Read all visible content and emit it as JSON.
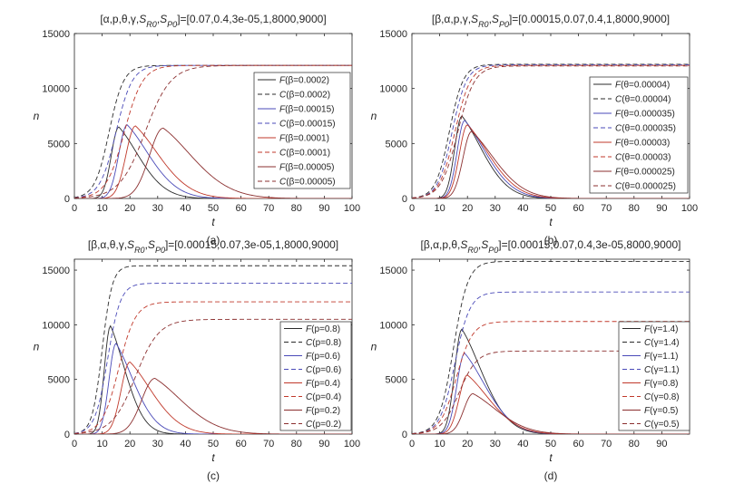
{
  "chart_data": [
    {
      "type": "line",
      "panel": "a",
      "title": "[α,p,θ,γ,S_R0,S_P0]=[0.07,0.4,3e-05,1,8000,9000]",
      "caption": "(a)",
      "xlabel": "t",
      "ylabel": "n",
      "xlim": [
        0,
        100
      ],
      "ylim": [
        0,
        15000
      ],
      "xticks": [
        0,
        10,
        20,
        30,
        40,
        50,
        60,
        70,
        80,
        90,
        100
      ],
      "yticks": [
        0,
        5000,
        10000,
        15000
      ],
      "legend_position": "right",
      "series": [
        {
          "name": "F(β=0.0002)",
          "color": "#2b2b2b",
          "dash": "solid",
          "peak": 6500,
          "peak_t": 16,
          "rise": 2.7,
          "tail": 11
        },
        {
          "name": "C(β=0.0002)",
          "color": "#2b2b2b",
          "dash": "dashed",
          "plateau": 12100,
          "mid_t": 12.5,
          "width": 2.6
        },
        {
          "name": "F(β=0.00015)",
          "color": "#4a4ab8",
          "dash": "solid",
          "peak": 6700,
          "peak_t": 19,
          "rise": 3.0,
          "tail": 12
        },
        {
          "name": "C(β=0.00015)",
          "color": "#4a4ab8",
          "dash": "dashed",
          "plateau": 12100,
          "mid_t": 15,
          "width": 2.9
        },
        {
          "name": "F(β=0.0001)",
          "color": "#c0392b",
          "dash": "solid",
          "peak": 6600,
          "peak_t": 22,
          "rise": 3.4,
          "tail": 13
        },
        {
          "name": "C(β=0.0001)",
          "color": "#c0392b",
          "dash": "dashed",
          "plateau": 12100,
          "mid_t": 18,
          "width": 3.3
        },
        {
          "name": "F(β=0.00005)",
          "color": "#8b2f2f",
          "dash": "solid",
          "peak": 6400,
          "peak_t": 32,
          "rise": 5.0,
          "tail": 16
        },
        {
          "name": "C(β=0.00005)",
          "color": "#8b2f2f",
          "dash": "dashed",
          "plateau": 12100,
          "mid_t": 25.5,
          "width": 4.6
        }
      ]
    },
    {
      "type": "line",
      "panel": "b",
      "title": "[β,α,p,γ,S_R0,S_P0]=[0.00015,0.07,0.4,1,8000,9000]",
      "caption": "(b)",
      "xlabel": "t",
      "ylabel": "n",
      "xlim": [
        0,
        100
      ],
      "ylim": [
        0,
        15000
      ],
      "xticks": [
        0,
        10,
        20,
        30,
        40,
        50,
        60,
        70,
        80,
        90,
        100
      ],
      "yticks": [
        0,
        5000,
        10000,
        15000
      ],
      "legend_position": "right",
      "series": [
        {
          "name": "F(θ=0.00004)",
          "color": "#2b2b2b",
          "dash": "solid",
          "peak": 7500,
          "peak_t": 18,
          "rise": 2.6,
          "tail": 11
        },
        {
          "name": "C(θ=0.00004)",
          "color": "#2b2b2b",
          "dash": "dashed",
          "plateau": 12200,
          "mid_t": 13.5,
          "width": 2.5
        },
        {
          "name": "F(θ=0.000035)",
          "color": "#4a4ab8",
          "dash": "solid",
          "peak": 7100,
          "peak_t": 19,
          "rise": 2.7,
          "tail": 11.5
        },
        {
          "name": "C(θ=0.000035)",
          "color": "#4a4ab8",
          "dash": "dashed",
          "plateau": 12150,
          "mid_t": 14.5,
          "width": 2.6
        },
        {
          "name": "F(θ=0.00003)",
          "color": "#c0392b",
          "dash": "solid",
          "peak": 6700,
          "peak_t": 20,
          "rise": 2.9,
          "tail": 12
        },
        {
          "name": "C(θ=0.00003)",
          "color": "#c0392b",
          "dash": "dashed",
          "plateau": 12100,
          "mid_t": 15.5,
          "width": 2.8
        },
        {
          "name": "F(θ=0.000025)",
          "color": "#8b2f2f",
          "dash": "solid",
          "peak": 6100,
          "peak_t": 21.5,
          "rise": 3.1,
          "tail": 12.5
        },
        {
          "name": "C(θ=0.000025)",
          "color": "#8b2f2f",
          "dash": "dashed",
          "plateau": 12050,
          "mid_t": 16.5,
          "width": 3.0
        }
      ]
    },
    {
      "type": "line",
      "panel": "c",
      "title": "[β,α,θ,γ,S_R0,S_P0]=[0.00015,0.07,3e-05,1,8000,9000]",
      "caption": "(c)",
      "xlabel": "t",
      "ylabel": "n",
      "xlim": [
        0,
        100
      ],
      "ylim": [
        0,
        16000
      ],
      "xticks": [
        0,
        10,
        20,
        30,
        40,
        50,
        60,
        70,
        80,
        90,
        100
      ],
      "yticks": [
        0,
        5000,
        10000,
        15000
      ],
      "legend_position": "right",
      "series": [
        {
          "name": "F(p=0.8)",
          "color": "#2b2b2b",
          "dash": "solid",
          "peak": 9900,
          "peak_t": 13,
          "rise": 2.2,
          "tail": 8
        },
        {
          "name": "C(p=0.8)",
          "color": "#2b2b2b",
          "dash": "dashed",
          "plateau": 15400,
          "mid_t": 10,
          "width": 1.8
        },
        {
          "name": "F(p=0.6)",
          "color": "#4a4ab8",
          "dash": "solid",
          "peak": 8300,
          "peak_t": 15,
          "rise": 2.5,
          "tail": 9.5
        },
        {
          "name": "C(p=0.6)",
          "color": "#4a4ab8",
          "dash": "dashed",
          "plateau": 13800,
          "mid_t": 12,
          "width": 2.3
        },
        {
          "name": "F(p=0.4)",
          "color": "#c0392b",
          "dash": "solid",
          "peak": 6600,
          "peak_t": 20,
          "rise": 3.2,
          "tail": 12
        },
        {
          "name": "C(p=0.4)",
          "color": "#c0392b",
          "dash": "dashed",
          "plateau": 12100,
          "mid_t": 16,
          "width": 3.0
        },
        {
          "name": "F(p=0.2)",
          "color": "#8b2f2f",
          "dash": "solid",
          "peak": 5100,
          "peak_t": 29,
          "rise": 4.8,
          "tail": 15
        },
        {
          "name": "C(p=0.2)",
          "color": "#8b2f2f",
          "dash": "dashed",
          "plateau": 10500,
          "mid_t": 22,
          "width": 4.2
        }
      ]
    },
    {
      "type": "line",
      "panel": "d",
      "title": "[β,α,p,θ,S_R0,S_P0]=[0.00015,0.07,0.4,3e-05,8000,9000]",
      "caption": "(d)",
      "xlabel": "t",
      "ylabel": "n",
      "xlim": [
        0,
        100
      ],
      "ylim": [
        0,
        16000
      ],
      "xticks": [
        0,
        10,
        20,
        30,
        40,
        50,
        60,
        70,
        80,
        90
      ],
      "yticks": [
        0,
        5000,
        10000,
        15000
      ],
      "legend_position": "right",
      "series": [
        {
          "name": "F(γ=1.4)",
          "color": "#2b2b2b",
          "dash": "solid",
          "peak": 9600,
          "peak_t": 18,
          "rise": 2.6,
          "tail": 11
        },
        {
          "name": "C(γ=1.4)",
          "color": "#2b2b2b",
          "dash": "dashed",
          "plateau": 15800,
          "mid_t": 15,
          "width": 2.6
        },
        {
          "name": "F(γ=1.1)",
          "color": "#4a4ab8",
          "dash": "solid",
          "peak": 7400,
          "peak_t": 19,
          "rise": 2.8,
          "tail": 11.5
        },
        {
          "name": "C(γ=1.1)",
          "color": "#4a4ab8",
          "dash": "dashed",
          "plateau": 13000,
          "mid_t": 15.5,
          "width": 2.7
        },
        {
          "name": "F(γ=0.8)",
          "color": "#c0392b",
          "dash": "solid",
          "peak": 5400,
          "peak_t": 20,
          "rise": 3.0,
          "tail": 12
        },
        {
          "name": "C(γ=0.8)",
          "color": "#c0392b",
          "dash": "dashed",
          "plateau": 10300,
          "mid_t": 16,
          "width": 2.9
        },
        {
          "name": "F(γ=0.5)",
          "color": "#8b2f2f",
          "dash": "solid",
          "peak": 3700,
          "peak_t": 22,
          "rise": 3.3,
          "tail": 13
        },
        {
          "name": "C(γ=0.5)",
          "color": "#8b2f2f",
          "dash": "dashed",
          "plateau": 7600,
          "mid_t": 17,
          "width": 3.2
        }
      ]
    }
  ]
}
